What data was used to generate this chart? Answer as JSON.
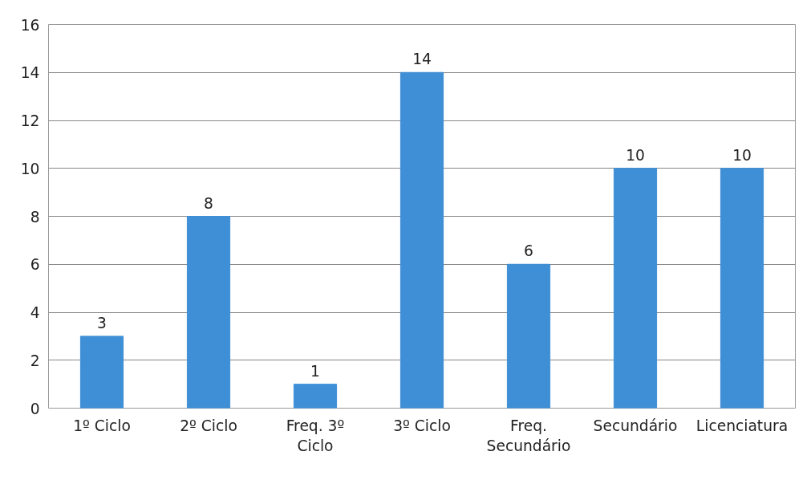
{
  "chart_data": {
    "type": "bar",
    "categories": [
      "1º Ciclo",
      "2º Ciclo",
      "Freq. 3º Ciclo",
      "3º Ciclo",
      "Freq. Secundário",
      "Secundário",
      "Licenciatura"
    ],
    "values": [
      3,
      8,
      1,
      14,
      6,
      10,
      10
    ],
    "color": "#3f8fd6",
    "ylim": [
      0,
      16
    ],
    "yticks": [
      0,
      2,
      4,
      6,
      8,
      10,
      12,
      14,
      16
    ],
    "grid": "y",
    "data_labels": true
  }
}
